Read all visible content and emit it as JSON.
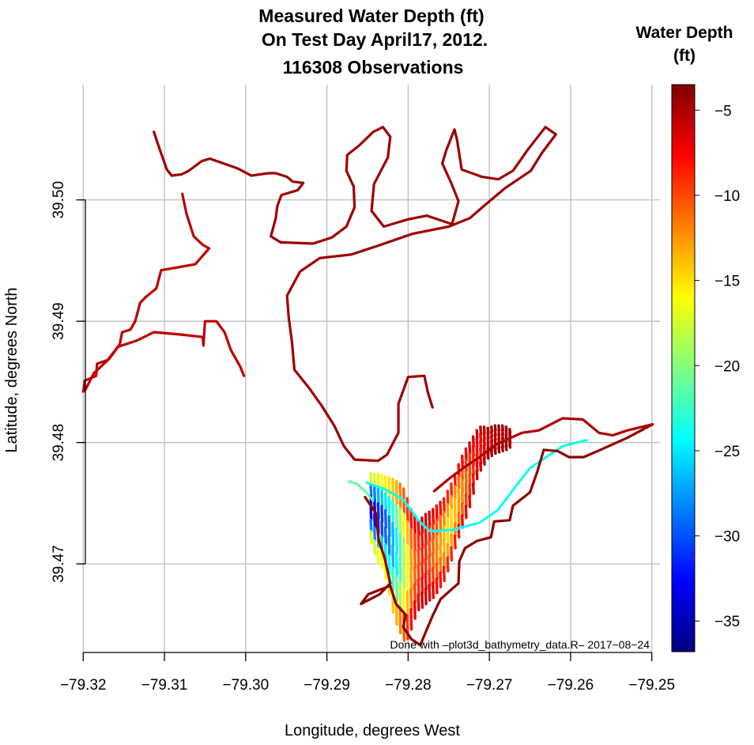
{
  "chart_data": {
    "type": "scatter",
    "title": [
      "Measured Water Depth (ft)",
      "On Test Day April17, 2012.",
      "116308 Observations"
    ],
    "xlabel": "Longitude, degrees West",
    "ylabel": "Latitude, degrees North",
    "xlim": [
      -79.321,
      -79.249
    ],
    "ylim": [
      39.4627,
      39.5095
    ],
    "x_ticks": [
      -79.32,
      -79.31,
      -79.3,
      -79.29,
      -79.28,
      -79.27,
      -79.26,
      -79.25
    ],
    "x_tick_labels": [
      "−79.32",
      "−79.31",
      "−79.30",
      "−79.29",
      "−79.28",
      "−79.27",
      "−79.26",
      "−79.25"
    ],
    "y_ticks": [
      39.47,
      39.48,
      39.49,
      39.5
    ],
    "y_tick_labels": [
      "39.47",
      "39.48",
      "39.49",
      "39.50"
    ],
    "grid": true,
    "colorbar": {
      "title": [
        "Water Depth",
        "(ft)"
      ],
      "range": [
        -36.8,
        -3.5
      ],
      "ticks": [
        -5,
        -10,
        -15,
        -20,
        -25,
        -30,
        -35
      ],
      "tick_labels": [
        "−5",
        "−10",
        "−15",
        "−20",
        "−25",
        "−30",
        "−35"
      ],
      "colormap": [
        "#00007F",
        "#0000FF",
        "#007FFF",
        "#00FFFF",
        "#7FFF7F",
        "#FFFF00",
        "#FF7F00",
        "#FF0000",
        "#7F0000"
      ]
    },
    "annotation": "Done with –plot3d_bathymetry_data.R–  2017−08−24",
    "shoreline_track": {
      "depth": -4.5,
      "points": [
        [
          -79.3113,
          39.5056
        ],
        [
          -79.3106,
          39.5042
        ],
        [
          -79.3097,
          39.5025
        ],
        [
          -79.3091,
          39.502
        ],
        [
          -79.3079,
          39.5021
        ],
        [
          -79.307,
          39.5024
        ],
        [
          -79.3054,
          39.5032
        ],
        [
          -79.3044,
          39.5034
        ],
        [
          -79.3027,
          39.503
        ],
        [
          -79.301,
          39.5026
        ],
        [
          -79.2993,
          39.502
        ],
        [
          -79.2972,
          39.5022
        ],
        [
          -79.2963,
          39.5022
        ],
        [
          -79.2949,
          39.5019
        ],
        [
          -79.2942,
          39.5015
        ],
        [
          -79.2929,
          39.5014
        ],
        [
          -79.2936,
          39.5008
        ],
        [
          -79.2956,
          39.5004
        ],
        [
          -79.2961,
          39.4995
        ],
        [
          -79.2963,
          39.4985
        ],
        [
          -79.2969,
          39.497
        ],
        [
          -79.2957,
          39.4965
        ],
        [
          -79.2917,
          39.4964
        ],
        [
          -79.2894,
          39.4969
        ],
        [
          -79.2876,
          39.4978
        ],
        [
          -79.2866,
          39.4994
        ],
        [
          -79.2867,
          39.5011
        ],
        [
          -79.2876,
          39.5024
        ],
        [
          -79.2875,
          39.5037
        ],
        [
          -79.286,
          39.5045
        ],
        [
          -79.2843,
          39.5056
        ],
        [
          -79.2831,
          39.506
        ],
        [
          -79.2822,
          39.5052
        ],
        [
          -79.2825,
          39.5035
        ],
        [
          -79.2842,
          39.5013
        ],
        [
          -79.2845,
          39.4991
        ],
        [
          -79.283,
          39.4978
        ],
        [
          -79.28,
          39.4984
        ],
        [
          -79.2777,
          39.4987
        ],
        [
          -79.2746,
          39.498
        ],
        [
          -79.2738,
          39.4999
        ],
        [
          -79.2747,
          39.5014
        ],
        [
          -79.2758,
          39.503
        ],
        [
          -79.2753,
          39.5041
        ],
        [
          -79.2743,
          39.5058
        ],
        [
          -79.274,
          39.505
        ],
        [
          -79.2734,
          39.5025
        ],
        [
          -79.2709,
          39.5019
        ],
        [
          -79.2689,
          39.5017
        ],
        [
          -79.2671,
          39.5024
        ],
        [
          -79.2652,
          39.5042
        ],
        [
          -79.2631,
          39.506
        ],
        [
          -79.2618,
          39.5054
        ],
        [
          -79.2635,
          39.5039
        ],
        [
          -79.2649,
          39.5024
        ],
        [
          -79.268,
          39.501
        ],
        [
          -79.2705,
          39.4996
        ],
        [
          -79.2724,
          39.4985
        ],
        [
          -79.275,
          39.4978
        ],
        [
          -79.2795,
          39.4972
        ],
        [
          -79.2838,
          39.4962
        ],
        [
          -79.287,
          39.4955
        ],
        [
          -79.2909,
          39.4952
        ],
        [
          -79.2933,
          39.4941
        ],
        [
          -79.2949,
          39.4921
        ],
        [
          -79.2947,
          39.4903
        ],
        [
          -79.2943,
          39.4883
        ],
        [
          -79.294,
          39.486
        ],
        [
          -79.2922,
          39.4845
        ],
        [
          -79.2906,
          39.483
        ],
        [
          -79.2891,
          39.4814
        ],
        [
          -79.2879,
          39.4797
        ],
        [
          -79.2866,
          39.4786
        ],
        [
          -79.2837,
          39.4785
        ],
        [
          -79.2826,
          39.479
        ],
        [
          -79.2812,
          39.4808
        ],
        [
          -79.2812,
          39.4832
        ],
        [
          -79.28,
          39.4854
        ],
        [
          -79.278,
          39.4855
        ],
        [
          -79.2776,
          39.4842
        ],
        [
          -79.277,
          39.4829
        ]
      ]
    },
    "west_track": {
      "depth": -5.5,
      "points": [
        [
          -79.3078,
          39.5005
        ],
        [
          -79.3073,
          39.4989
        ],
        [
          -79.3064,
          39.497
        ],
        [
          -79.3053,
          39.4963
        ],
        [
          -79.3045,
          39.496
        ],
        [
          -79.3062,
          39.4947
        ],
        [
          -79.3087,
          39.4944
        ],
        [
          -79.3104,
          39.4942
        ],
        [
          -79.311,
          39.4927
        ],
        [
          -79.3123,
          39.492
        ],
        [
          -79.313,
          39.4915
        ],
        [
          -79.3136,
          39.49
        ],
        [
          -79.3142,
          39.4893
        ],
        [
          -79.3152,
          39.4891
        ],
        [
          -79.3155,
          39.4881
        ],
        [
          -79.317,
          39.4868
        ],
        [
          -79.3183,
          39.4865
        ],
        [
          -79.3184,
          39.4855
        ],
        [
          -79.3198,
          39.4851
        ],
        [
          -79.32,
          39.4842
        ],
        [
          -79.3197,
          39.4844
        ],
        [
          -79.3187,
          39.4857
        ],
        [
          -79.3168,
          39.4869
        ],
        [
          -79.3157,
          39.4879
        ],
        [
          -79.3134,
          39.4884
        ],
        [
          -79.3113,
          39.4891
        ],
        [
          -79.308,
          39.4889
        ],
        [
          -79.3053,
          39.4887
        ],
        [
          -79.3052,
          39.488
        ],
        [
          -79.305,
          39.49
        ],
        [
          -79.3036,
          39.49
        ],
        [
          -79.3026,
          39.4891
        ],
        [
          -79.3018,
          39.4876
        ],
        [
          -79.3007,
          39.4863
        ],
        [
          -79.3002,
          39.4855
        ]
      ]
    },
    "basin": {
      "lon_start": -79.2846,
      "lon_step": 0.00045,
      "columns": [
        [
          39.4775,
          39.4717,
          -34
        ],
        [
          39.4774,
          39.4708,
          -34
        ],
        [
          39.4774,
          39.4701,
          -32
        ],
        [
          39.4773,
          39.4697,
          -31
        ],
        [
          39.4772,
          39.4688,
          -30
        ],
        [
          39.4771,
          39.4675,
          -29
        ],
        [
          39.477,
          39.466,
          -27
        ],
        [
          39.4768,
          39.465,
          -25
        ],
        [
          39.4766,
          39.4643,
          -22
        ],
        [
          39.4762,
          39.4637,
          -19
        ],
        [
          39.4754,
          39.4638,
          -16
        ],
        [
          39.4745,
          39.4646,
          -13
        ],
        [
          39.4739,
          39.4655,
          -11
        ],
        [
          39.4736,
          39.4662,
          -10
        ],
        [
          39.4738,
          39.4664,
          -9
        ],
        [
          39.4741,
          39.4667,
          -9
        ],
        [
          39.4743,
          39.467,
          -10
        ],
        [
          39.4745,
          39.4672,
          -11
        ],
        [
          39.4748,
          39.4676,
          -12
        ],
        [
          39.4751,
          39.4681,
          -13
        ],
        [
          39.4754,
          39.4686,
          -14
        ],
        [
          39.476,
          39.4694,
          -15
        ],
        [
          39.4766,
          39.4703,
          -15
        ],
        [
          39.4774,
          39.4713,
          -14
        ],
        [
          39.4782,
          39.4722,
          -13
        ],
        [
          39.4789,
          39.473,
          -12
        ],
        [
          39.4795,
          39.4738,
          -11
        ],
        [
          39.48,
          39.4747,
          -10
        ],
        [
          39.4805,
          39.4758,
          -9
        ],
        [
          39.481,
          39.477,
          -8
        ],
        [
          39.4813,
          39.4777,
          -8
        ],
        [
          39.4813,
          39.4782,
          -7
        ],
        [
          39.4812,
          39.4787,
          -6
        ],
        [
          39.4813,
          39.4789,
          -6
        ],
        [
          39.4814,
          39.4791,
          -5
        ],
        [
          39.4814,
          39.4792,
          -5
        ],
        [
          39.4814,
          39.4793,
          -5
        ],
        [
          39.4813,
          39.4794,
          -5
        ],
        [
          39.4811,
          39.4796,
          -5
        ]
      ],
      "thalweg": {
        "depth": -24,
        "points": [
          [
            -79.2851,
            39.4767
          ],
          [
            -79.283,
            39.4762
          ],
          [
            -79.2806,
            39.4753
          ],
          [
            -79.2786,
            39.4735
          ],
          [
            -79.2773,
            39.4727
          ],
          [
            -79.2745,
            39.4728
          ],
          [
            -79.2712,
            39.4734
          ],
          [
            -79.269,
            39.4744
          ],
          [
            -79.2672,
            39.476
          ],
          [
            -79.265,
            39.4779
          ],
          [
            -79.261,
            39.4797
          ],
          [
            -79.258,
            39.4802
          ]
        ]
      },
      "west_arm": {
        "depth": -21,
        "points": [
          [
            -79.2873,
            39.4768
          ],
          [
            -79.2863,
            39.4766
          ],
          [
            -79.2853,
            39.476
          ],
          [
            -79.2843,
            39.4752
          ]
        ]
      },
      "outline": {
        "depth": -4,
        "points": [
          [
            -79.2853,
            39.4755
          ],
          [
            -79.284,
            39.4742
          ],
          [
            -79.2836,
            39.4719
          ],
          [
            -79.2829,
            39.4705
          ],
          [
            -79.2822,
            39.4684
          ],
          [
            -79.2835,
            39.4675
          ],
          [
            -79.2858,
            39.4667
          ],
          [
            -79.2849,
            39.4675
          ],
          [
            -79.2822,
            39.4682
          ],
          [
            -79.2815,
            39.4667
          ],
          [
            -79.2803,
            39.4658
          ],
          [
            -79.2806,
            39.4648
          ],
          [
            -79.2796,
            39.4638
          ],
          [
            -79.2785,
            39.4633
          ],
          [
            -79.2777,
            39.4646
          ],
          [
            -79.277,
            39.4657
          ],
          [
            -79.276,
            39.4671
          ],
          [
            -79.275,
            39.4677
          ],
          [
            -79.2738,
            39.4684
          ],
          [
            -79.2737,
            39.4702
          ],
          [
            -79.273,
            39.4713
          ],
          [
            -79.2715,
            39.4719
          ],
          [
            -79.2698,
            39.4722
          ],
          [
            -79.2694,
            39.4735
          ],
          [
            -79.2675,
            39.4736
          ],
          [
            -79.2671,
            39.4748
          ],
          [
            -79.265,
            39.4759
          ],
          [
            -79.2641,
            39.4776
          ],
          [
            -79.2633,
            39.4794
          ],
          [
            -79.2616,
            39.4793
          ],
          [
            -79.2602,
            39.4788
          ],
          [
            -79.2584,
            39.4788
          ],
          [
            -79.256,
            39.4795
          ],
          [
            -79.253,
            39.4804
          ],
          [
            -79.2499,
            39.4815
          ]
        ]
      },
      "north_rim": {
        "depth": -5,
        "points": [
          [
            -79.2768,
            39.476
          ],
          [
            -79.275,
            39.477
          ],
          [
            -79.273,
            39.478
          ],
          [
            -79.2712,
            39.4788
          ],
          [
            -79.269,
            39.4799
          ],
          [
            -79.266,
            39.4808
          ],
          [
            -79.2639,
            39.481
          ],
          [
            -79.261,
            39.482
          ],
          [
            -79.2585,
            39.4819
          ],
          [
            -79.2565,
            39.4808
          ],
          [
            -79.2548,
            39.4806
          ],
          [
            -79.253,
            39.481
          ],
          [
            -79.2499,
            39.4815
          ]
        ]
      }
    }
  }
}
